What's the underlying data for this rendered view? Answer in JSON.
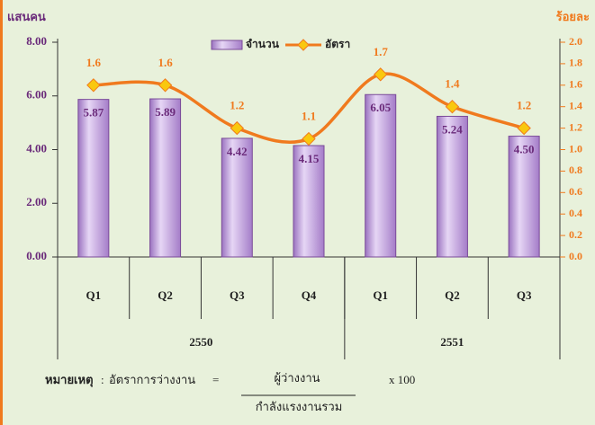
{
  "chart_data": {
    "type": "bar+line",
    "y_label": "แสนคน",
    "y2_label": "ร้อยละ",
    "categories": [
      "Q1",
      "Q2",
      "Q3",
      "Q4",
      "Q1",
      "Q2",
      "Q3"
    ],
    "groups": [
      {
        "label": "2550",
        "span": 4
      },
      {
        "label": "2551",
        "span": 3
      }
    ],
    "series": [
      {
        "name": "จำนวน",
        "type": "bar",
        "color": "#c9aee3",
        "values": [
          5.87,
          5.89,
          4.42,
          4.15,
          6.05,
          5.24,
          4.5
        ],
        "value_labels": [
          "5.87",
          "5.89",
          "4.42",
          "4.15",
          "6.05",
          "5.24",
          "4.50"
        ]
      },
      {
        "name": "อัตรา",
        "type": "line",
        "axis": "y2",
        "color": "#f07a1e",
        "marker_color": "#f9c80e",
        "values": [
          1.6,
          1.6,
          1.2,
          1.1,
          1.7,
          1.4,
          1.2
        ]
      }
    ],
    "ylim": [
      0,
      8
    ],
    "yticks": [
      {
        "value": 0,
        "label": "0.00"
      },
      {
        "value": 2,
        "label": "2.00"
      },
      {
        "value": 4,
        "label": "4.00"
      },
      {
        "value": 6,
        "label": "6.00"
      },
      {
        "value": 8,
        "label": "8.00"
      }
    ],
    "y2lim": [
      0,
      2
    ],
    "y2ticks": [
      {
        "value": 0,
        "label": "0.0"
      },
      0.2,
      0.4,
      0.6,
      0.8,
      {
        "value": 1,
        "label": "1.0"
      },
      1.2,
      1.4,
      1.6,
      1.8,
      {
        "value": 2,
        "label": "2.0"
      }
    ],
    "note": {
      "label": "หมายเหตุ",
      "colon": ":",
      "term": "อัตราการว่างงาน",
      "equals": "=",
      "numerator": "ผู้ว่างงาน",
      "denominator": "กำลังแรงงานรวม",
      "times": "x  100"
    }
  }
}
